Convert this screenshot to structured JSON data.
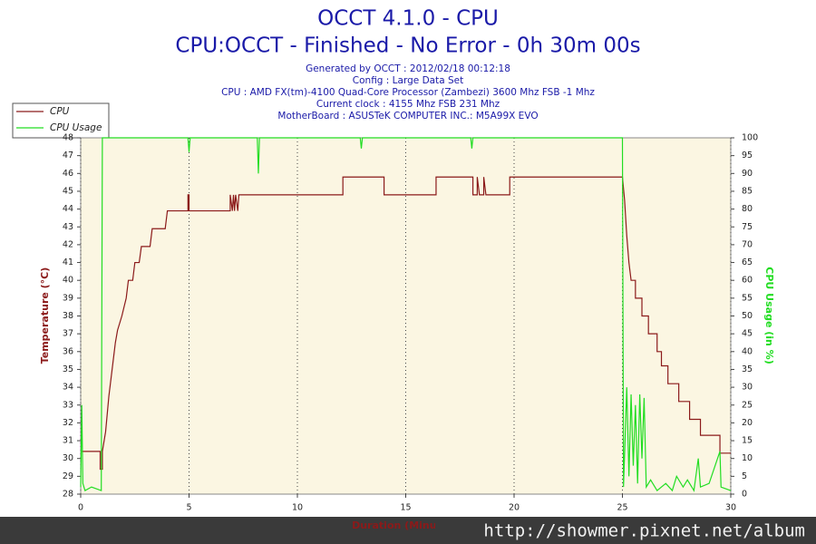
{
  "chart_data": {
    "type": "line",
    "title": "OCCT 4.1.0 - CPU",
    "subtitle": "CPU:OCCT - Finished - No Error - 0h 30m 00s",
    "info_lines": [
      "Generated by OCCT : 2012/02/18 00:12:18",
      "Config : Large Data Set",
      "CPU : AMD FX(tm)-4100 Quad-Core Processor (Zambezi) 3600 Mhz FSB -1 Mhz",
      "Current clock : 4155 Mhz FSB 231 Mhz",
      "MotherBoard : ASUSTeK COMPUTER INC.: M5A99X EVO"
    ],
    "x_label": "Duration (Minutes)",
    "y_label": "Temperature (°C)",
    "y2_label": "CPU Usage (in %)",
    "watermark": "http://showmer.pixnet.net/album",
    "legend": "top-left",
    "grid": true,
    "xlim": [
      0,
      30
    ],
    "xticks": [
      0,
      5,
      10,
      15,
      20,
      25,
      30
    ],
    "ylim": [
      28,
      48
    ],
    "yticks": [
      28,
      29,
      30,
      31,
      32,
      33,
      34,
      35,
      36,
      37,
      38,
      39,
      40,
      41,
      42,
      43,
      44,
      45,
      46,
      47,
      48
    ],
    "y2lim": [
      0,
      100
    ],
    "y2ticks": [
      0,
      5,
      10,
      15,
      20,
      25,
      30,
      35,
      40,
      45,
      50,
      55,
      60,
      65,
      70,
      75,
      80,
      85,
      90,
      95,
      100
    ],
    "series": [
      {
        "name": "CPU",
        "color": "#8b1a1a",
        "x": [
          0,
          0.9,
          0.9,
          1.0,
          1.0,
          1.15,
          1.3,
          1.4,
          1.5,
          1.6,
          1.7,
          1.9,
          2.0,
          2.1,
          2.2,
          2.4,
          2.5,
          2.7,
          2.8,
          3.2,
          3.3,
          3.9,
          4.0,
          4.95,
          4.95,
          5.0,
          5.0,
          6.9,
          6.9,
          7.0,
          7.05,
          7.1,
          7.15,
          7.25,
          7.3,
          12.1,
          12.1,
          14.0,
          14.0,
          16.4,
          16.4,
          18.1,
          18.1,
          18.3,
          18.3,
          18.4,
          18.6,
          18.6,
          18.7,
          19.8,
          19.8,
          25.0,
          25.1,
          25.2,
          25.3,
          25.4,
          25.6,
          25.6,
          25.9,
          25.9,
          26.2,
          26.2,
          26.6,
          26.6,
          26.8,
          26.8,
          27.1,
          27.1,
          27.6,
          27.6,
          28.1,
          28.1,
          28.6,
          28.6,
          29.5,
          29.5,
          30
        ],
        "values": [
          30.4,
          30.4,
          29.4,
          29.4,
          30.4,
          31.5,
          33.5,
          34.5,
          35.5,
          36.5,
          37.2,
          38,
          38.5,
          39,
          40,
          40,
          41,
          41,
          41.9,
          41.9,
          42.9,
          42.9,
          43.9,
          43.9,
          44.8,
          44.8,
          43.9,
          43.9,
          44.8,
          43.9,
          44.8,
          43.9,
          44.8,
          43.9,
          44.8,
          44.8,
          45.8,
          45.8,
          44.8,
          44.8,
          45.8,
          45.8,
          44.8,
          44.8,
          45.8,
          44.8,
          44.8,
          45.8,
          44.8,
          44.8,
          45.8,
          45.8,
          44.5,
          42.5,
          41,
          40,
          40,
          39,
          39,
          38,
          38,
          37,
          37,
          36,
          36,
          35.2,
          35.2,
          34.2,
          34.2,
          33.2,
          33.2,
          32.2,
          32.2,
          31.3,
          31.3,
          30.3,
          30.3
        ]
      },
      {
        "name": "CPU Usage",
        "color": "#22dd22",
        "axis": "y2",
        "x": [
          0,
          0.05,
          0.1,
          0.2,
          0.5,
          0.95,
          1.0,
          4.95,
          5.0,
          5.05,
          8.15,
          8.2,
          8.25,
          12.9,
          12.95,
          13,
          18.0,
          18.05,
          18.1,
          24.9,
          25.0,
          25.05,
          25.2,
          25.3,
          25.4,
          25.5,
          25.6,
          25.7,
          25.8,
          25.9,
          26.0,
          26.1,
          26.3,
          26.6,
          27.0,
          27.3,
          27.5,
          27.8,
          28.0,
          28.3,
          28.5,
          28.6,
          29.0,
          29.5,
          29.55,
          30
        ],
        "values": [
          2,
          25,
          3,
          1,
          2,
          1,
          100,
          100,
          96,
          100,
          100,
          90,
          100,
          100,
          97,
          100,
          100,
          97,
          100,
          100,
          100,
          2,
          30,
          5,
          28,
          8,
          25,
          3,
          28,
          10,
          27,
          2,
          4,
          1,
          3,
          1,
          5,
          2,
          4,
          1,
          10,
          2,
          3,
          12,
          2,
          1
        ]
      }
    ]
  }
}
